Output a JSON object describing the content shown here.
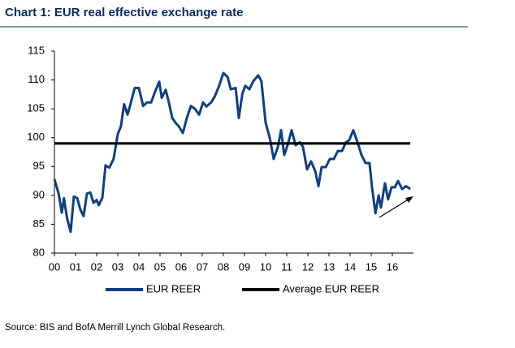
{
  "chart_data": {
    "type": "line",
    "title": "Chart 1: EUR real effective exchange rate",
    "source": "Source: BIS and BofA Merrill Lynch Global Research.",
    "xlim": [
      0,
      17
    ],
    "xticks": [
      {
        "value": 0,
        "label": "00"
      },
      {
        "value": 1,
        "label": "01"
      },
      {
        "value": 2,
        "label": "02"
      },
      {
        "value": 3,
        "label": "03"
      },
      {
        "value": 4,
        "label": "04"
      },
      {
        "value": 5,
        "label": "05"
      },
      {
        "value": 6,
        "label": "06"
      },
      {
        "value": 7,
        "label": "07"
      },
      {
        "value": 8,
        "label": "08"
      },
      {
        "value": 9,
        "label": "09"
      },
      {
        "value": 10,
        "label": "10"
      },
      {
        "value": 11,
        "label": "11"
      },
      {
        "value": 12,
        "label": "12"
      },
      {
        "value": 13,
        "label": "13"
      },
      {
        "value": 14,
        "label": "14"
      },
      {
        "value": 15,
        "label": "15"
      },
      {
        "value": 16,
        "label": "16"
      }
    ],
    "ylim": [
      80,
      115
    ],
    "yticks": [
      80,
      85,
      90,
      95,
      100,
      105,
      110,
      115
    ],
    "legend": "bottom",
    "series": [
      {
        "name": "EUR REER",
        "color": "#123f7d",
        "x": [
          0.0,
          0.2,
          0.35,
          0.45,
          0.6,
          0.77,
          0.92,
          1.08,
          1.23,
          1.38,
          1.54,
          1.7,
          1.85,
          2.0,
          2.1,
          2.27,
          2.42,
          2.6,
          2.8,
          3.0,
          3.15,
          3.3,
          3.46,
          3.6,
          3.8,
          4.0,
          4.2,
          4.38,
          4.58,
          4.77,
          4.96,
          5.08,
          5.27,
          5.42,
          5.58,
          5.73,
          5.88,
          6.08,
          6.27,
          6.46,
          6.65,
          6.85,
          7.04,
          7.2,
          7.42,
          7.6,
          7.8,
          8.0,
          8.2,
          8.35,
          8.58,
          8.73,
          8.9,
          9.04,
          9.23,
          9.42,
          9.65,
          9.8,
          10.0,
          10.2,
          10.38,
          10.58,
          10.73,
          10.88,
          11.04,
          11.23,
          11.42,
          11.62,
          11.77,
          11.96,
          12.15,
          12.35,
          12.5,
          12.65,
          12.85,
          13.04,
          13.23,
          13.42,
          13.62,
          13.8,
          13.96,
          14.15,
          14.35,
          14.54,
          14.73,
          14.92,
          15.04,
          15.2,
          15.35,
          15.46,
          15.65,
          15.8,
          15.96,
          16.12,
          16.27,
          16.46,
          16.65,
          16.85
        ],
        "values": [
          92.8,
          90.3,
          87,
          89.5,
          86,
          83.7,
          89.8,
          89.5,
          87.5,
          86.4,
          90.3,
          90.5,
          88.7,
          89.2,
          88.3,
          89.6,
          95.2,
          94.8,
          96.3,
          100.6,
          102,
          105.8,
          104,
          105.8,
          108.6,
          108.6,
          105.5,
          106.1,
          106.1,
          108,
          109.7,
          106.9,
          108.3,
          106.1,
          103.4,
          102.6,
          102,
          100.8,
          103.4,
          105.5,
          105,
          104,
          106.1,
          105.4,
          106.1,
          107.2,
          109,
          111.2,
          110.5,
          108.4,
          108.6,
          103.4,
          107.6,
          109,
          108.4,
          109.8,
          110.8,
          109.8,
          102.6,
          99.9,
          96.3,
          98.4,
          101.3,
          97,
          98.7,
          101.3,
          98.7,
          99.2,
          98.4,
          94.5,
          95.9,
          94.2,
          91.6,
          94.9,
          94.9,
          96.3,
          96.3,
          97.7,
          97.7,
          99.2,
          99.6,
          101.3,
          99.2,
          97,
          95.6,
          95.6,
          91.4,
          86.9,
          90,
          87.9,
          92.1,
          89.3,
          91.4,
          91.4,
          92.5,
          91.1,
          91.6,
          91.1
        ]
      },
      {
        "name": "Average EUR REER",
        "color": "#000000",
        "x": [
          0,
          16.85
        ],
        "values": [
          99,
          99
        ]
      }
    ]
  }
}
